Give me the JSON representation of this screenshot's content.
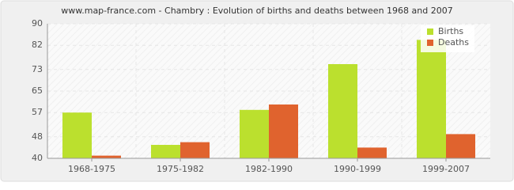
{
  "chart_data": {
    "type": "bar",
    "title": "www.map-france.com - Chambry : Evolution of births and deaths between 1968 and 2007",
    "categories": [
      "1968-1975",
      "1975-1982",
      "1982-1990",
      "1990-1999",
      "1999-2007"
    ],
    "series": [
      {
        "name": "Births",
        "color": "#bbe02e",
        "values": [
          57,
          45,
          58,
          75,
          84
        ]
      },
      {
        "name": "Deaths",
        "color": "#e0632e",
        "values": [
          41,
          46,
          60,
          44,
          49
        ]
      }
    ],
    "ylim": [
      40,
      90
    ],
    "yticks": [
      40,
      48,
      57,
      65,
      73,
      82,
      90
    ],
    "grid": true,
    "legend": "top-right"
  }
}
